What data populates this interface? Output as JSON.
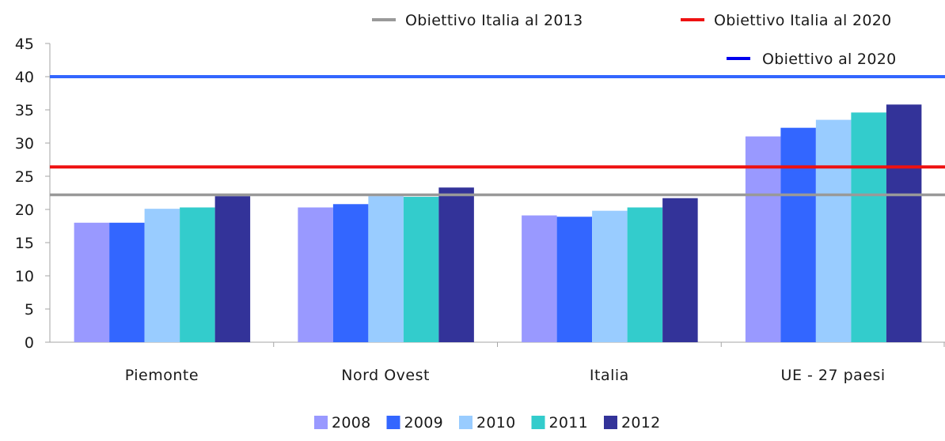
{
  "chart_data": {
    "type": "bar",
    "categories": [
      "Piemonte",
      "Nord Ovest",
      "Italia",
      "UE - 27 paesi"
    ],
    "series": [
      {
        "name": "2008",
        "color": "#9999ff",
        "values": [
          18.0,
          20.3,
          19.1,
          31.0
        ]
      },
      {
        "name": "2009",
        "color": "#3366ff",
        "values": [
          18.0,
          20.8,
          18.9,
          32.3
        ]
      },
      {
        "name": "2010",
        "color": "#99ccff",
        "values": [
          20.1,
          22.0,
          19.8,
          33.5
        ]
      },
      {
        "name": "2011",
        "color": "#33cccc",
        "values": [
          20.3,
          21.9,
          20.3,
          34.6
        ]
      },
      {
        "name": "2012",
        "color": "#333399",
        "values": [
          22.0,
          23.3,
          21.7,
          35.8
        ]
      }
    ],
    "reference_lines": [
      {
        "name": "Obiettivo Italia al 2013",
        "value": 22.2,
        "color": "#999999",
        "legend_color": "#999999"
      },
      {
        "name": "Obiettivo Italia al 2020",
        "value": 26.4,
        "color": "#ee1111",
        "legend_color": "#ee1111"
      },
      {
        "name": "Obiettivo al 2020",
        "value": 40.0,
        "color": "#3366ff",
        "legend_color": "#0000ee"
      }
    ],
    "ylim": [
      0,
      45
    ],
    "yticks": [
      "0",
      "5",
      "10",
      "15",
      "20",
      "25",
      "30",
      "35",
      "40",
      "45"
    ],
    "grid": false,
    "legend_position": "bottom",
    "reference_legend_position": "top-right",
    "title": "",
    "xlabel": "",
    "ylabel": ""
  }
}
